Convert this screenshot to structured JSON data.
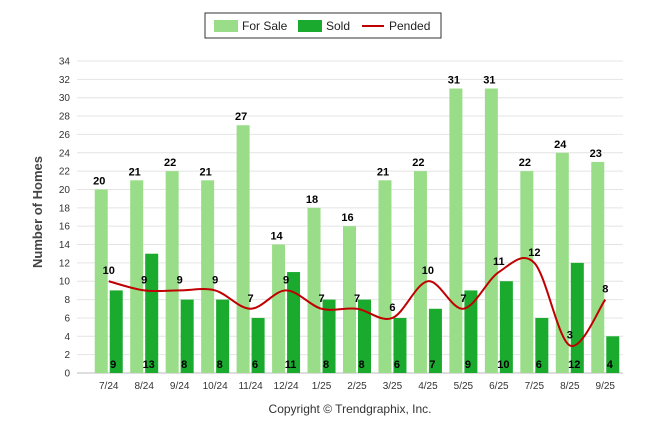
{
  "chart_data": {
    "type": "bar",
    "categories": [
      "7/24",
      "8/24",
      "9/24",
      "10/24",
      "11/24",
      "12/24",
      "1/25",
      "2/25",
      "3/25",
      "4/25",
      "5/25",
      "6/25",
      "7/25",
      "8/25",
      "9/25"
    ],
    "series": [
      {
        "name": "For Sale",
        "type": "bar",
        "color": "#99dd88",
        "values": [
          20,
          21,
          22,
          21,
          27,
          14,
          18,
          16,
          21,
          22,
          31,
          31,
          22,
          24,
          23
        ]
      },
      {
        "name": "Sold",
        "type": "bar",
        "color": "#1aaa2e",
        "values": [
          9,
          13,
          8,
          8,
          6,
          11,
          8,
          8,
          6,
          7,
          9,
          10,
          6,
          12,
          4
        ]
      },
      {
        "name": "Pended",
        "type": "line",
        "color": "#c00000",
        "values": [
          10,
          9,
          9,
          9,
          7,
          9,
          7,
          7,
          6,
          10,
          7,
          11,
          12,
          3,
          8
        ]
      }
    ],
    "ylabel": "Number of Homes",
    "xlabel": "",
    "ylim": [
      0,
      34
    ],
    "yticks": [
      0,
      2,
      4,
      6,
      8,
      10,
      12,
      14,
      16,
      18,
      20,
      22,
      24,
      26,
      28,
      30,
      32,
      34
    ],
    "grid": true,
    "legend": "top-center"
  },
  "footer": {
    "copyright": "Copyright © Trendgraphix, Inc."
  }
}
